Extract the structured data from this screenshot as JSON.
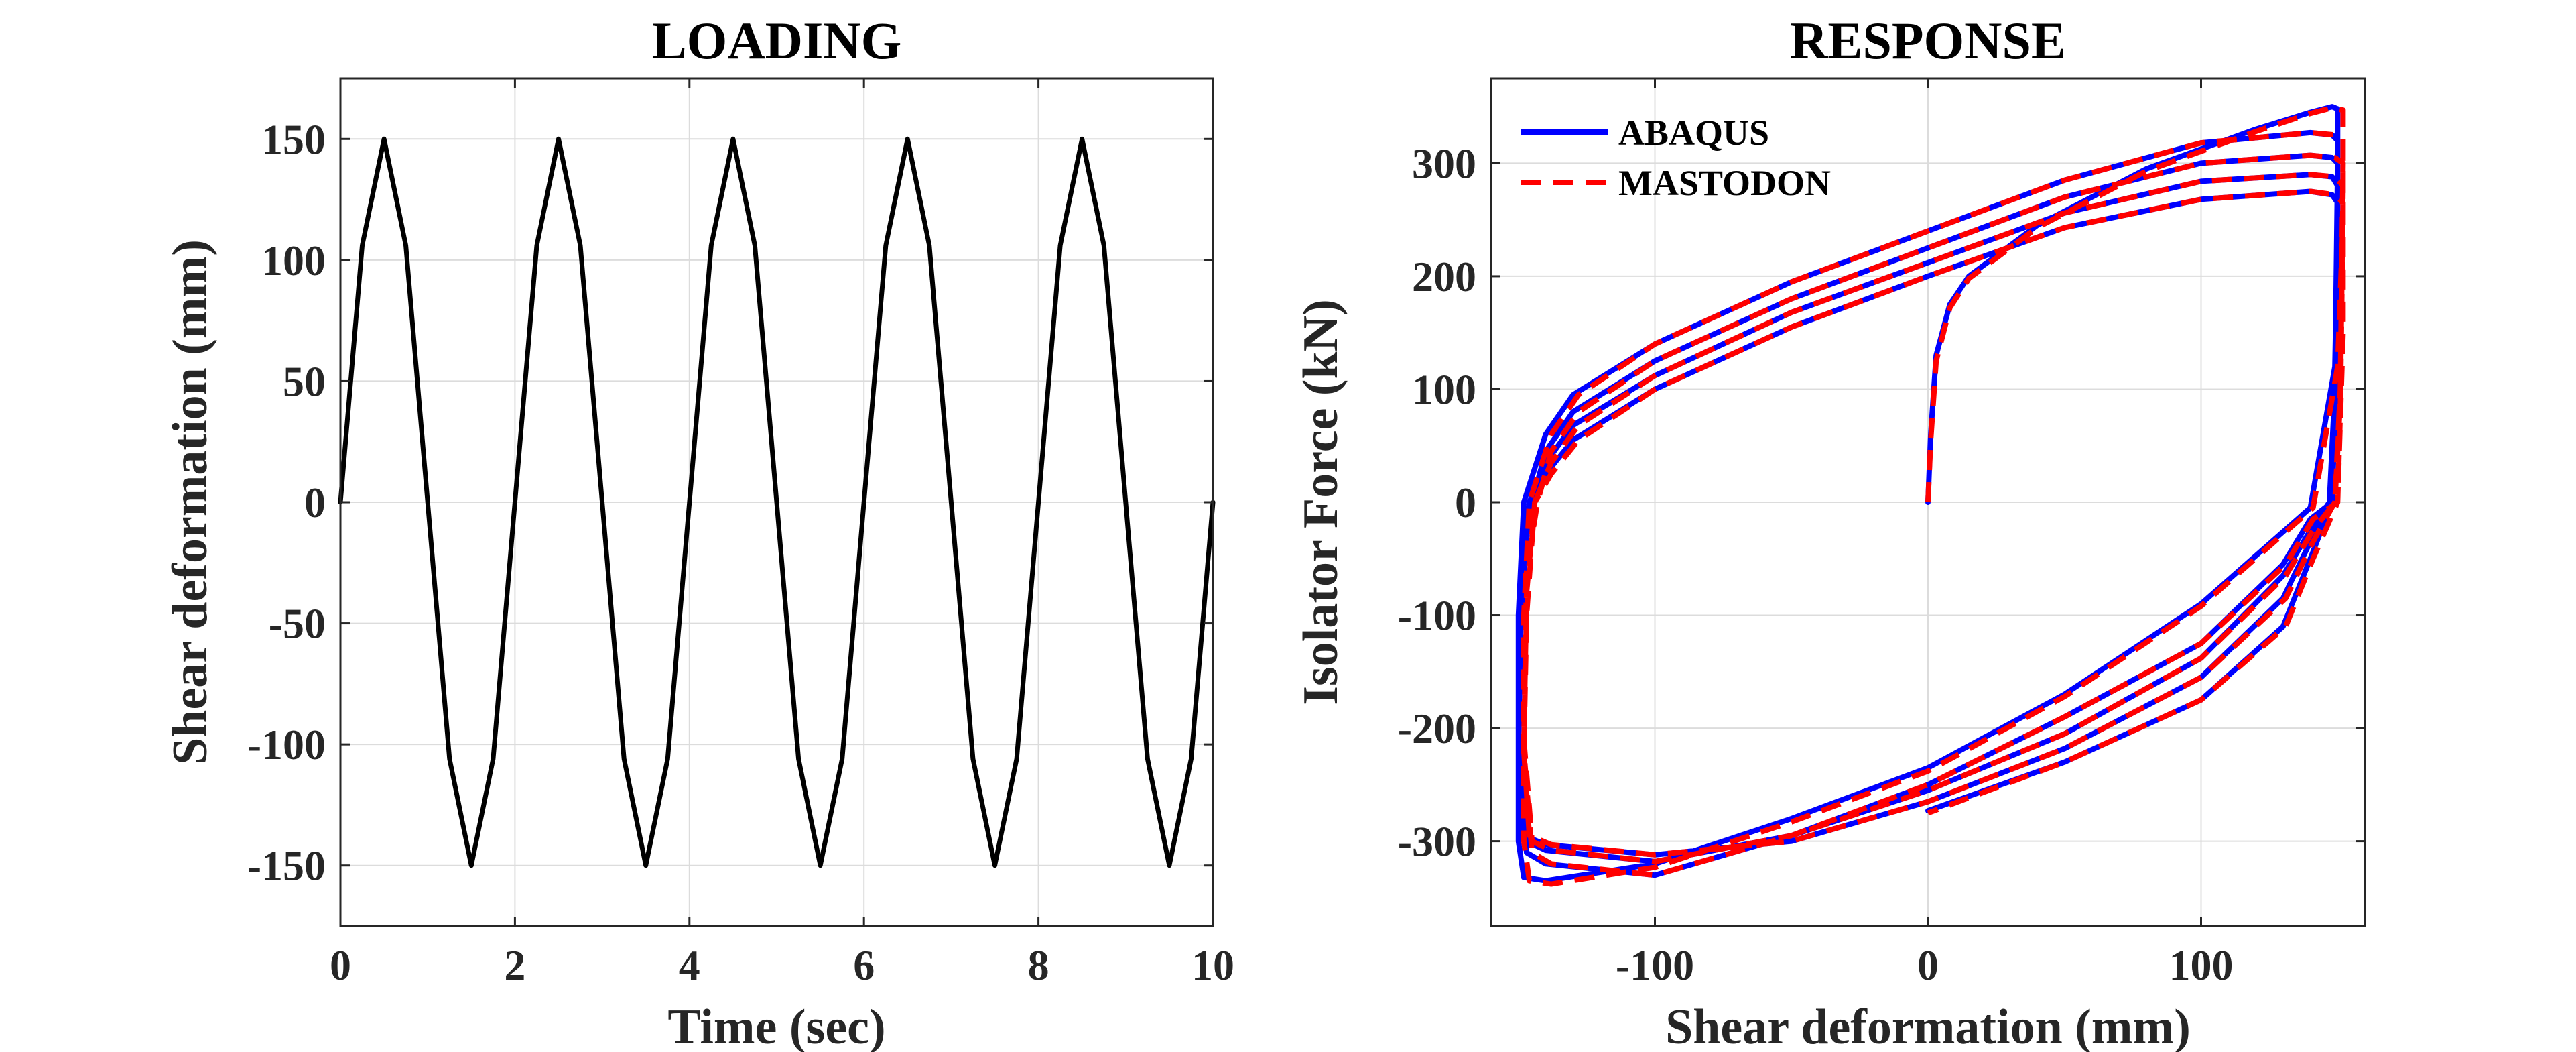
{
  "chart_data": [
    {
      "type": "line",
      "title": "LOADING",
      "xlabel": "Time (sec)",
      "ylabel": "Shear deformation (mm)",
      "xlim": [
        0,
        10
      ],
      "ylim": [
        -175,
        175
      ],
      "x_ticks": [
        0,
        2,
        4,
        6,
        8,
        10
      ],
      "x_tick_labels": [
        "0",
        "2",
        "4",
        "6",
        "8",
        "10"
      ],
      "y_ticks": [
        -150,
        -100,
        -50,
        0,
        50,
        100,
        150
      ],
      "y_tick_labels": [
        "-150",
        "-100",
        "-50",
        "0",
        "50",
        "100",
        "150"
      ],
      "grid": true,
      "series": [
        {
          "color": "#000000",
          "line_style": "solid",
          "x": [
            0,
            0.25,
            0.5,
            0.75,
            1.0,
            1.25,
            1.5,
            1.75,
            2.0,
            2.25,
            2.5,
            2.75,
            3.0,
            3.25,
            3.5,
            3.75,
            4.0,
            4.25,
            4.5,
            4.75,
            5.0,
            5.25,
            5.5,
            5.75,
            6.0,
            6.25,
            6.5,
            6.75,
            7.0,
            7.25,
            7.5,
            7.75,
            8.0,
            8.25,
            8.5,
            8.75,
            9.0,
            9.25,
            9.5,
            9.75,
            10.0
          ],
          "y": [
            0,
            106,
            150,
            106,
            0,
            -106,
            -150,
            -106,
            0,
            106,
            150,
            106,
            0,
            -106,
            -150,
            -106,
            0,
            106,
            150,
            106,
            0,
            -106,
            -150,
            -106,
            0,
            106,
            150,
            106,
            0,
            -106,
            -150,
            -106,
            0,
            106,
            150,
            106,
            0,
            -106,
            -150,
            -106,
            0
          ]
        }
      ]
    },
    {
      "type": "line",
      "title": "RESPONSE",
      "xlabel": "Shear deformation (mm)",
      "ylabel": "Isolator Force (kN)",
      "xlim": [
        -160,
        160
      ],
      "ylim": [
        -375,
        375
      ],
      "x_ticks": [
        -100,
        0,
        100
      ],
      "x_tick_labels": [
        "-100",
        "0",
        "100"
      ],
      "y_ticks": [
        -300,
        -200,
        -100,
        0,
        100,
        200,
        300
      ],
      "y_tick_labels": [
        "-300",
        "-200",
        "-100",
        "0",
        "100",
        "200",
        "300"
      ],
      "grid": true,
      "legend_position": "top-left",
      "series": [
        {
          "name": "ABAQUS",
          "color": "#0000ff",
          "line_style": "solid",
          "x": [
            0,
            1,
            3,
            8,
            15,
            40,
            80,
            120,
            140,
            148,
            150,
            150,
            149,
            140,
            100,
            50,
            0,
            -50,
            -100,
            -140,
            -148,
            -150,
            -150,
            -148,
            -140,
            -130,
            -100,
            -50,
            0,
            50,
            100,
            140,
            148,
            150,
            150,
            148,
            140,
            130,
            100,
            50,
            0,
            -50,
            -100,
            -140,
            -147,
            -150,
            -149,
            -145,
            -140,
            -130,
            -100,
            -50,
            0,
            50,
            100,
            140,
            148,
            150,
            149,
            147,
            140,
            130,
            100,
            50,
            0,
            -50,
            -100,
            -140,
            -147,
            -150,
            -149,
            -146,
            -140,
            -130,
            -100,
            -50,
            0,
            50,
            100,
            140,
            148,
            150,
            149,
            147,
            140,
            130,
            100,
            50,
            0,
            -50,
            -100,
            -140,
            -148,
            -150,
            -149,
            -146,
            -140,
            -130,
            -100,
            -50,
            0,
            50,
            100,
            140,
            148,
            150,
            149,
            148,
            140,
            130,
            100,
            50,
            0
          ],
          "y": [
            0,
            60,
            130,
            175,
            200,
            245,
            295,
            330,
            345,
            350,
            348,
            250,
            120,
            -5,
            -90,
            -170,
            -235,
            -280,
            -320,
            -335,
            -332,
            -300,
            -100,
            0,
            60,
            95,
            140,
            195,
            240,
            285,
            318,
            327,
            325,
            320,
            150,
            0,
            -15,
            -55,
            -125,
            -190,
            -250,
            -295,
            -330,
            -320,
            -310,
            -220,
            -60,
            0,
            45,
            80,
            125,
            180,
            225,
            270,
            300,
            307,
            305,
            300,
            100,
            0,
            -25,
            -65,
            -138,
            -205,
            -255,
            -295,
            -318,
            -308,
            -300,
            -210,
            -80,
            0,
            35,
            68,
            112,
            168,
            212,
            256,
            284,
            290,
            288,
            280,
            90,
            0,
            -35,
            -85,
            -155,
            -218,
            -265,
            -300,
            -312,
            -303,
            -295,
            -220,
            -100,
            0,
            25,
            55,
            100,
            155,
            200,
            243,
            268,
            275,
            272,
            265,
            80,
            0,
            -50,
            -110,
            -175,
            -230,
            -273
          ]
        },
        {
          "name": "MASTODON",
          "color": "#ff0000",
          "line_style": "dashed",
          "x": [
            0,
            1,
            3,
            8,
            15,
            40,
            80,
            120,
            140,
            148,
            152,
            152,
            150,
            141,
            100,
            50,
            0,
            -50,
            -100,
            -138,
            -146,
            -148,
            -148,
            -146,
            -138,
            -128,
            -100,
            -50,
            0,
            50,
            100,
            140,
            149,
            152,
            152,
            150,
            141,
            131,
            100,
            50,
            0,
            -50,
            -100,
            -138,
            -145,
            -148,
            -147,
            -143,
            -138,
            -128,
            -100,
            -50,
            0,
            50,
            100,
            140,
            149,
            152,
            151,
            149,
            141,
            131,
            100,
            50,
            0,
            -50,
            -100,
            -138,
            -145,
            -148,
            -147,
            -144,
            -138,
            -128,
            -100,
            -50,
            0,
            50,
            100,
            140,
            149,
            152,
            151,
            149,
            141,
            131,
            100,
            50,
            0,
            -50,
            -100,
            -138,
            -146,
            -148,
            -147,
            -144,
            -138,
            -128,
            -100,
            -50,
            0,
            50,
            100,
            140,
            149,
            152,
            151,
            150,
            141,
            131,
            100,
            50,
            0
          ],
          "y": [
            0,
            55,
            125,
            172,
            198,
            243,
            293,
            328,
            344,
            349,
            347,
            250,
            120,
            -5,
            -92,
            -172,
            -238,
            -283,
            -323,
            -338,
            -335,
            -300,
            -100,
            0,
            60,
            95,
            140,
            195,
            240,
            285,
            318,
            327,
            325,
            320,
            150,
            0,
            -15,
            -55,
            -125,
            -190,
            -250,
            -295,
            -330,
            -320,
            -310,
            -220,
            -60,
            0,
            45,
            80,
            125,
            180,
            225,
            270,
            300,
            307,
            305,
            300,
            100,
            0,
            -25,
            -65,
            -138,
            -205,
            -255,
            -295,
            -318,
            -308,
            -300,
            -210,
            -80,
            0,
            35,
            68,
            112,
            168,
            212,
            256,
            284,
            290,
            288,
            280,
            90,
            0,
            -35,
            -85,
            -155,
            -218,
            -265,
            -300,
            -312,
            -303,
            -295,
            -220,
            -100,
            0,
            25,
            55,
            100,
            155,
            200,
            243,
            268,
            275,
            272,
            265,
            80,
            0,
            -50,
            -110,
            -175,
            -230,
            -275
          ]
        }
      ]
    }
  ]
}
